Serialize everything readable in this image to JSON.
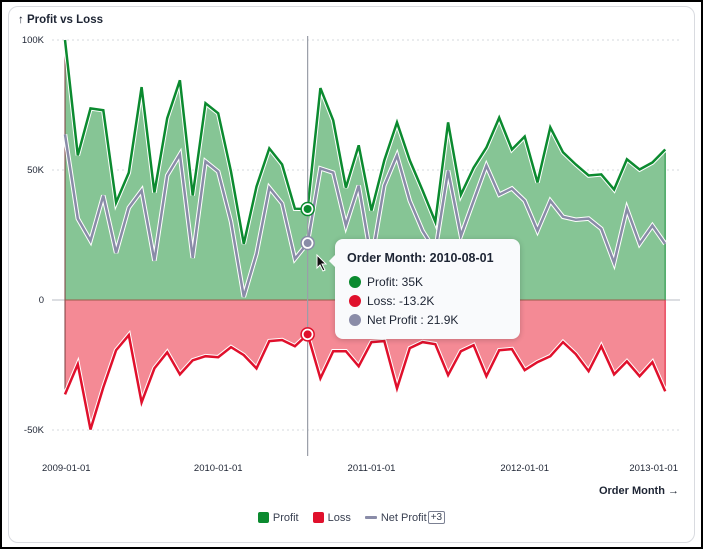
{
  "card": {
    "title": "↑ Profit vs Loss"
  },
  "colors": {
    "profit": "#0b8a2f",
    "profit_fill": "#86c595",
    "loss": "#e0102c",
    "loss_fill": "#f48a95",
    "net": "#8a8ca8"
  },
  "chart_data": {
    "type": "area",
    "title": "Profit vs Loss",
    "xlabel": "Order Month →",
    "ylabel": "",
    "ylim": [
      -50000,
      100000
    ],
    "y_ticks": [
      {
        "value": 100000,
        "label": "100K"
      },
      {
        "value": 50000,
        "label": "50K"
      },
      {
        "value": 0,
        "label": "0"
      },
      {
        "value": -50000,
        "label": "-50K"
      }
    ],
    "x_ticks": [
      {
        "index": 0,
        "label": "2009-01-01"
      },
      {
        "index": 12,
        "label": "2010-01-01"
      },
      {
        "index": 24,
        "label": "2011-01-01"
      },
      {
        "index": 36,
        "label": "2012-01-01"
      },
      {
        "index": 48,
        "label": "2013-01-01"
      }
    ],
    "grid": true,
    "legend_position": "bottom",
    "x": [
      "2009-01-01",
      "2009-02-01",
      "2009-03-01",
      "2009-04-01",
      "2009-05-01",
      "2009-06-01",
      "2009-07-01",
      "2009-08-01",
      "2009-09-01",
      "2009-10-01",
      "2009-11-01",
      "2009-12-01",
      "2010-01-01",
      "2010-02-01",
      "2010-03-01",
      "2010-04-01",
      "2010-05-01",
      "2010-06-01",
      "2010-07-01",
      "2010-08-01",
      "2010-09-01",
      "2010-10-01",
      "2010-11-01",
      "2010-12-01",
      "2011-01-01",
      "2011-02-01",
      "2011-03-01",
      "2011-04-01",
      "2011-05-01",
      "2011-06-01",
      "2011-07-01",
      "2011-08-01",
      "2011-09-01",
      "2011-10-01",
      "2011-11-01",
      "2011-12-01",
      "2012-01-01",
      "2012-02-01",
      "2012-03-01",
      "2012-04-01",
      "2012-05-01",
      "2012-06-01",
      "2012-07-01",
      "2012-08-01",
      "2012-09-01",
      "2012-10-01",
      "2012-11-01",
      "2012-12-01"
    ],
    "series": [
      {
        "name": "Profit",
        "type": "area",
        "values": [
          100000,
          55600,
          73700,
          73000,
          37500,
          49000,
          81900,
          41300,
          69900,
          84500,
          40200,
          75700,
          71800,
          49400,
          21600,
          43600,
          58300,
          52100,
          35100,
          35000,
          81500,
          69100,
          43200,
          59500,
          34400,
          53700,
          68300,
          53700,
          42100,
          30100,
          68300,
          40500,
          50900,
          58600,
          70100,
          57900,
          62900,
          45200,
          66400,
          56800,
          52100,
          47900,
          48300,
          42500,
          54100,
          50200,
          52900,
          57900
        ]
      },
      {
        "name": "Loss",
        "type": "area",
        "values": [
          -36300,
          -24700,
          -49800,
          -33600,
          -19300,
          -13500,
          -39400,
          -26300,
          -20100,
          -28600,
          -23200,
          -21600,
          -22000,
          -18100,
          -21200,
          -26300,
          -15800,
          -15400,
          -17800,
          -13200,
          -30100,
          -19700,
          -19700,
          -25500,
          -16200,
          -15800,
          -34000,
          -18500,
          -16200,
          -17000,
          -28900,
          -19700,
          -17400,
          -29300,
          -19300,
          -18900,
          -27000,
          -23900,
          -21600,
          -16200,
          -20800,
          -27400,
          -17800,
          -28600,
          -23600,
          -29300,
          -23900,
          -35100
        ]
      },
      {
        "name": "Net Profit",
        "type": "line",
        "values": [
          63700,
          31300,
          22800,
          40200,
          18100,
          35500,
          42100,
          15100,
          47900,
          56000,
          16200,
          53300,
          49400,
          30100,
          1200,
          17800,
          43200,
          37100,
          15800,
          21900,
          50600,
          49000,
          28600,
          44000,
          15100,
          44000,
          55600,
          38200,
          26600,
          18900,
          49800,
          24700,
          38200,
          51700,
          40500,
          42900,
          38200,
          26600,
          38200,
          32000,
          30900,
          31300,
          27400,
          14300,
          35100,
          21600,
          28600,
          21600
        ]
      }
    ],
    "hover": {
      "index": 19,
      "title": "Order Month: 2010-08-01",
      "rows": [
        {
          "series": "Profit",
          "label": "Profit: 35K"
        },
        {
          "series": "Loss",
          "label": "Loss: -13.2K"
        },
        {
          "series": "Net Profit",
          "label": "Net Profit : 21.9K"
        }
      ]
    }
  },
  "legend": {
    "items": [
      {
        "label": "Profit"
      },
      {
        "label": "Loss"
      },
      {
        "label": "Net Profit"
      }
    ],
    "more_label": "+3"
  }
}
